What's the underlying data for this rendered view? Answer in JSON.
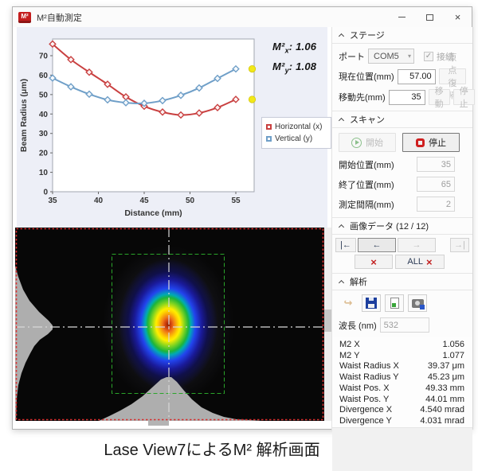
{
  "window": {
    "title": "M²自動測定",
    "logo_text": "M²",
    "close": "×"
  },
  "caption": "Lase View7によるM² 解析画面",
  "chart_data": {
    "type": "line",
    "title": "",
    "xlabel": "Distance (mm)",
    "ylabel": "Beam Radius (μm)",
    "x": [
      35,
      37,
      39,
      41,
      43,
      45,
      47,
      49,
      51,
      53,
      55
    ],
    "xticks": [
      35,
      40,
      45,
      50,
      55
    ],
    "yticks": [
      0,
      10,
      20,
      30,
      40,
      50,
      60,
      70
    ],
    "xlim": [
      35,
      57
    ],
    "ylim": [
      0,
      78.5
    ],
    "grid": false,
    "legend_position": "right",
    "series": [
      {
        "name": "Horizontal (x)",
        "color": "#c94040",
        "marker": "diamond",
        "values": [
          76,
          68,
          61.5,
          55.3,
          48.8,
          44,
          41,
          39.5,
          40.5,
          43.3,
          47.5
        ]
      },
      {
        "name": "Vertical (y)",
        "color": "#6f9fc8",
        "marker": "diamond",
        "values": [
          58.5,
          54,
          50.2,
          47.3,
          45.8,
          45.5,
          46.9,
          49.6,
          53.4,
          58.3,
          63.2
        ]
      }
    ],
    "annotations": [
      {
        "base": "M²",
        "sub": "x",
        "value": ": 1.06"
      },
      {
        "base": "M²",
        "sub": "y",
        "value": ": 1.08"
      }
    ],
    "latest_marker_color": "#f2e818"
  },
  "panel": {
    "stage": {
      "title": "ステージ",
      "port_label": "ポート",
      "port_value": "COM5",
      "connect_check": "✓",
      "connect_label": "接続",
      "current_label": "現在位置(mm)",
      "current_value": "57.00",
      "home_button": "原点復帰",
      "target_label": "移動先(mm)",
      "target_value": "35",
      "move_button": "移動",
      "stop_button": "停止"
    },
    "scan": {
      "title": "スキャン",
      "start_button": "開始",
      "stop_button": "停止",
      "start_pos_label": "開始位置(mm)",
      "start_pos_value": "35",
      "end_pos_label": "終了位置(mm)",
      "end_pos_value": "65",
      "interval_label": "測定間隔(mm)",
      "interval_value": "2"
    },
    "image_data": {
      "title": "画像データ (12 / 12)",
      "first_button": "|←",
      "prev_button": "←",
      "next_button": "→",
      "last_button": "→|",
      "delete_icon": "×",
      "delete_all_label": "ALL",
      "delete_all_icon": "×"
    },
    "analysis": {
      "title": "解析",
      "wavelength_label": "波長 (nm)",
      "wavelength_value": "532",
      "results": [
        {
          "label": "M2 X",
          "value": "1.056"
        },
        {
          "label": "M2 Y",
          "value": "1.077"
        },
        {
          "label": "Waist Radius X",
          "value": "39.37 μm"
        },
        {
          "label": "Waist Radius Y",
          "value": "45.23 μm"
        },
        {
          "label": "Waist Pos. X",
          "value": "49.33 mm"
        },
        {
          "label": "Waist Pos. Y",
          "value": "44.01 mm"
        },
        {
          "label": "Divergence X",
          "value": "4.540 mrad"
        },
        {
          "label": "Divergence Y",
          "value": "4.031 mrad"
        }
      ]
    }
  },
  "beam_view": {
    "border_color": "#d83030",
    "roi_color": "#2aa52a",
    "crosshair_color": "#d8d8d8",
    "histogram_color": "#aeaeae"
  }
}
